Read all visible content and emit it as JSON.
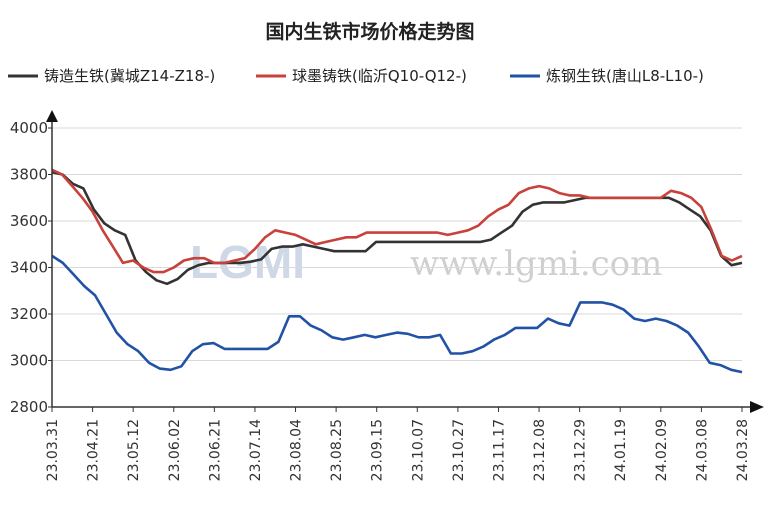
{
  "chart_data": {
    "type": "line",
    "title": "国内生铁市场价格走势图",
    "watermark": "www.lgmi.com",
    "watermark_logo": "LGMI",
    "ylim": [
      2800,
      4000
    ],
    "yticks": [
      2800,
      3000,
      3200,
      3400,
      3600,
      3800,
      4000
    ],
    "xticks": [
      "23.03.31",
      "23.04.21",
      "23.05.12",
      "23.06.02",
      "23.06.21",
      "23.07.14",
      "23.08.04",
      "23.08.25",
      "23.09.15",
      "23.10.07",
      "23.10.27",
      "23.11.17",
      "23.12.08",
      "23.12.29",
      "24.01.19",
      "24.02.09",
      "24.03.08",
      "24.03.28"
    ],
    "grid": true,
    "legend": "top",
    "series": [
      {
        "name": "铸造生铁(冀城Z14-Z18-)",
        "color": "#333333",
        "values": [
          3810,
          3800,
          3760,
          3740,
          3650,
          3590,
          3560,
          3540,
          3430,
          3380,
          3345,
          3330,
          3350,
          3390,
          3410,
          3420,
          3420,
          3420,
          3420,
          3425,
          3435,
          3480,
          3490,
          3490,
          3500,
          3490,
          3480,
          3470,
          3470,
          3470,
          3470,
          3510,
          3510,
          3510,
          3510,
          3510,
          3510,
          3510,
          3510,
          3510,
          3510,
          3510,
          3520,
          3550,
          3580,
          3640,
          3670,
          3680,
          3680,
          3680,
          3690,
          3700,
          3700,
          3700,
          3700,
          3700,
          3700,
          3700,
          3700,
          3700,
          3680,
          3650,
          3620,
          3560,
          3450,
          3410,
          3420
        ]
      },
      {
        "name": "球墨铸铁(临沂Q10-Q12-)",
        "color": "#c8413b",
        "values": [
          3820,
          3800,
          3750,
          3700,
          3640,
          3560,
          3490,
          3420,
          3430,
          3400,
          3380,
          3380,
          3400,
          3430,
          3440,
          3440,
          3420,
          3420,
          3430,
          3440,
          3480,
          3530,
          3560,
          3550,
          3540,
          3520,
          3500,
          3510,
          3520,
          3530,
          3530,
          3550,
          3550,
          3550,
          3550,
          3550,
          3550,
          3550,
          3550,
          3540,
          3550,
          3560,
          3580,
          3620,
          3650,
          3670,
          3720,
          3740,
          3750,
          3740,
          3720,
          3710,
          3710,
          3700,
          3700,
          3700,
          3700,
          3700,
          3700,
          3700,
          3700,
          3730,
          3720,
          3700,
          3660,
          3560,
          3450,
          3430,
          3450
        ]
      },
      {
        "name": "炼钢生铁(唐山L8-L10-)",
        "color": "#2152a6",
        "values": [
          3450,
          3420,
          3370,
          3320,
          3280,
          3200,
          3120,
          3070,
          3040,
          2990,
          2965,
          2960,
          2975,
          3040,
          3070,
          3075,
          3050,
          3050,
          3050,
          3050,
          3050,
          3080,
          3190,
          3190,
          3150,
          3130,
          3100,
          3090,
          3100,
          3110,
          3100,
          3110,
          3120,
          3115,
          3100,
          3100,
          3110,
          3030,
          3030,
          3040,
          3060,
          3090,
          3110,
          3140,
          3140,
          3140,
          3180,
          3160,
          3150,
          3250,
          3250,
          3250,
          3240,
          3220,
          3180,
          3170,
          3180,
          3170,
          3150,
          3120,
          3060,
          2990,
          2980,
          2960,
          2950
        ]
      }
    ]
  }
}
